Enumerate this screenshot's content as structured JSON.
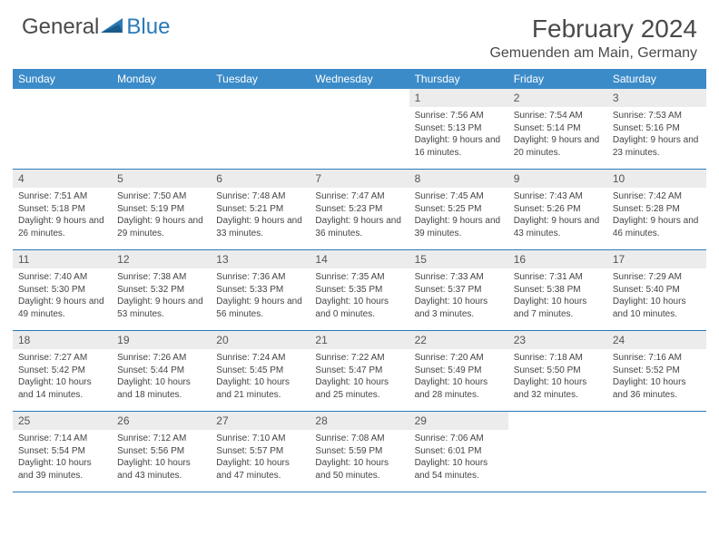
{
  "logo": {
    "general": "General",
    "blue": "Blue"
  },
  "title": "February 2024",
  "location": "Gemuenden am Main, Germany",
  "weekdays": [
    "Sunday",
    "Monday",
    "Tuesday",
    "Wednesday",
    "Thursday",
    "Friday",
    "Saturday"
  ],
  "colors": {
    "header_bar": "#3b8bc9",
    "daynum_bg": "#ececec",
    "rule": "#2a7ab8",
    "logo_blue": "#2a7ab8",
    "text": "#4a4a4a"
  },
  "weeks": [
    [
      {
        "n": "",
        "sr": "",
        "ss": "",
        "dl": ""
      },
      {
        "n": "",
        "sr": "",
        "ss": "",
        "dl": ""
      },
      {
        "n": "",
        "sr": "",
        "ss": "",
        "dl": ""
      },
      {
        "n": "",
        "sr": "",
        "ss": "",
        "dl": ""
      },
      {
        "n": "1",
        "sr": "Sunrise: 7:56 AM",
        "ss": "Sunset: 5:13 PM",
        "dl": "Daylight: 9 hours and 16 minutes."
      },
      {
        "n": "2",
        "sr": "Sunrise: 7:54 AM",
        "ss": "Sunset: 5:14 PM",
        "dl": "Daylight: 9 hours and 20 minutes."
      },
      {
        "n": "3",
        "sr": "Sunrise: 7:53 AM",
        "ss": "Sunset: 5:16 PM",
        "dl": "Daylight: 9 hours and 23 minutes."
      }
    ],
    [
      {
        "n": "4",
        "sr": "Sunrise: 7:51 AM",
        "ss": "Sunset: 5:18 PM",
        "dl": "Daylight: 9 hours and 26 minutes."
      },
      {
        "n": "5",
        "sr": "Sunrise: 7:50 AM",
        "ss": "Sunset: 5:19 PM",
        "dl": "Daylight: 9 hours and 29 minutes."
      },
      {
        "n": "6",
        "sr": "Sunrise: 7:48 AM",
        "ss": "Sunset: 5:21 PM",
        "dl": "Daylight: 9 hours and 33 minutes."
      },
      {
        "n": "7",
        "sr": "Sunrise: 7:47 AM",
        "ss": "Sunset: 5:23 PM",
        "dl": "Daylight: 9 hours and 36 minutes."
      },
      {
        "n": "8",
        "sr": "Sunrise: 7:45 AM",
        "ss": "Sunset: 5:25 PM",
        "dl": "Daylight: 9 hours and 39 minutes."
      },
      {
        "n": "9",
        "sr": "Sunrise: 7:43 AM",
        "ss": "Sunset: 5:26 PM",
        "dl": "Daylight: 9 hours and 43 minutes."
      },
      {
        "n": "10",
        "sr": "Sunrise: 7:42 AM",
        "ss": "Sunset: 5:28 PM",
        "dl": "Daylight: 9 hours and 46 minutes."
      }
    ],
    [
      {
        "n": "11",
        "sr": "Sunrise: 7:40 AM",
        "ss": "Sunset: 5:30 PM",
        "dl": "Daylight: 9 hours and 49 minutes."
      },
      {
        "n": "12",
        "sr": "Sunrise: 7:38 AM",
        "ss": "Sunset: 5:32 PM",
        "dl": "Daylight: 9 hours and 53 minutes."
      },
      {
        "n": "13",
        "sr": "Sunrise: 7:36 AM",
        "ss": "Sunset: 5:33 PM",
        "dl": "Daylight: 9 hours and 56 minutes."
      },
      {
        "n": "14",
        "sr": "Sunrise: 7:35 AM",
        "ss": "Sunset: 5:35 PM",
        "dl": "Daylight: 10 hours and 0 minutes."
      },
      {
        "n": "15",
        "sr": "Sunrise: 7:33 AM",
        "ss": "Sunset: 5:37 PM",
        "dl": "Daylight: 10 hours and 3 minutes."
      },
      {
        "n": "16",
        "sr": "Sunrise: 7:31 AM",
        "ss": "Sunset: 5:38 PM",
        "dl": "Daylight: 10 hours and 7 minutes."
      },
      {
        "n": "17",
        "sr": "Sunrise: 7:29 AM",
        "ss": "Sunset: 5:40 PM",
        "dl": "Daylight: 10 hours and 10 minutes."
      }
    ],
    [
      {
        "n": "18",
        "sr": "Sunrise: 7:27 AM",
        "ss": "Sunset: 5:42 PM",
        "dl": "Daylight: 10 hours and 14 minutes."
      },
      {
        "n": "19",
        "sr": "Sunrise: 7:26 AM",
        "ss": "Sunset: 5:44 PM",
        "dl": "Daylight: 10 hours and 18 minutes."
      },
      {
        "n": "20",
        "sr": "Sunrise: 7:24 AM",
        "ss": "Sunset: 5:45 PM",
        "dl": "Daylight: 10 hours and 21 minutes."
      },
      {
        "n": "21",
        "sr": "Sunrise: 7:22 AM",
        "ss": "Sunset: 5:47 PM",
        "dl": "Daylight: 10 hours and 25 minutes."
      },
      {
        "n": "22",
        "sr": "Sunrise: 7:20 AM",
        "ss": "Sunset: 5:49 PM",
        "dl": "Daylight: 10 hours and 28 minutes."
      },
      {
        "n": "23",
        "sr": "Sunrise: 7:18 AM",
        "ss": "Sunset: 5:50 PM",
        "dl": "Daylight: 10 hours and 32 minutes."
      },
      {
        "n": "24",
        "sr": "Sunrise: 7:16 AM",
        "ss": "Sunset: 5:52 PM",
        "dl": "Daylight: 10 hours and 36 minutes."
      }
    ],
    [
      {
        "n": "25",
        "sr": "Sunrise: 7:14 AM",
        "ss": "Sunset: 5:54 PM",
        "dl": "Daylight: 10 hours and 39 minutes."
      },
      {
        "n": "26",
        "sr": "Sunrise: 7:12 AM",
        "ss": "Sunset: 5:56 PM",
        "dl": "Daylight: 10 hours and 43 minutes."
      },
      {
        "n": "27",
        "sr": "Sunrise: 7:10 AM",
        "ss": "Sunset: 5:57 PM",
        "dl": "Daylight: 10 hours and 47 minutes."
      },
      {
        "n": "28",
        "sr": "Sunrise: 7:08 AM",
        "ss": "Sunset: 5:59 PM",
        "dl": "Daylight: 10 hours and 50 minutes."
      },
      {
        "n": "29",
        "sr": "Sunrise: 7:06 AM",
        "ss": "Sunset: 6:01 PM",
        "dl": "Daylight: 10 hours and 54 minutes."
      },
      {
        "n": "",
        "sr": "",
        "ss": "",
        "dl": ""
      },
      {
        "n": "",
        "sr": "",
        "ss": "",
        "dl": ""
      }
    ]
  ]
}
